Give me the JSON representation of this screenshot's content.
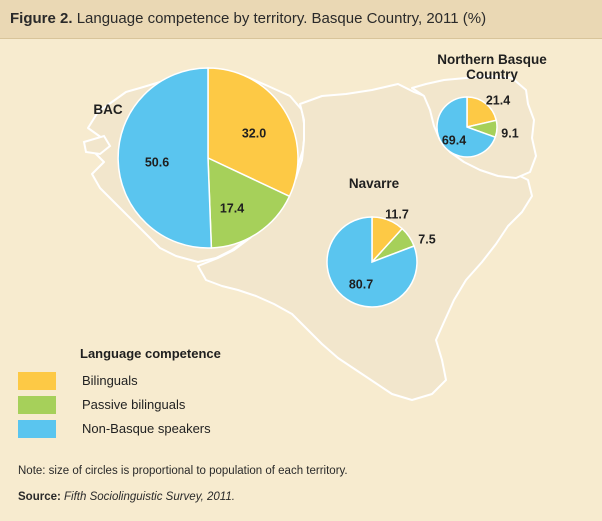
{
  "header": {
    "figure_label": "Figure 2.",
    "title": "Language competence by territory. Basque Country, 2011 (%)"
  },
  "chart_data": {
    "type": "pie",
    "title": "Language competence by territory. Basque Country, 2011 (%)",
    "categories": [
      "Bilinguals",
      "Passive bilinguals",
      "Non-Basque speakers"
    ],
    "colors": [
      "#fdc945",
      "#a6d05a",
      "#5ac5ef"
    ],
    "pies": [
      {
        "name": "BAC",
        "values": [
          32.0,
          17.4,
          50.6
        ],
        "labels": [
          "32.0",
          "17.4",
          "50.6"
        ]
      },
      {
        "name": "Navarre",
        "values": [
          11.7,
          7.5,
          80.7
        ],
        "labels": [
          "11.7",
          "7.5",
          "80.7"
        ]
      },
      {
        "name": "Northern Basque Country",
        "name_lines": [
          "Northern Basque",
          "Country"
        ],
        "values": [
          21.4,
          9.1,
          69.4
        ],
        "labels": [
          "21.4",
          "9.1",
          "69.4"
        ]
      }
    ],
    "legend": {
      "title": "Language competence",
      "placement": "bottom-left",
      "entries": [
        "Bilinguals",
        "Passive bilinguals",
        "Non-Basque speakers"
      ]
    }
  },
  "footer": {
    "note": "Note: size of circles is proportional to population of each territory.",
    "source_label": "Source:",
    "source_text": "Fifth Sociolinguistic Survey, 2011."
  },
  "colors": {
    "background": "#f7ebcf",
    "title_bar": "#ead8b4",
    "land": "#f2e6cc",
    "border": "#ffffff"
  }
}
